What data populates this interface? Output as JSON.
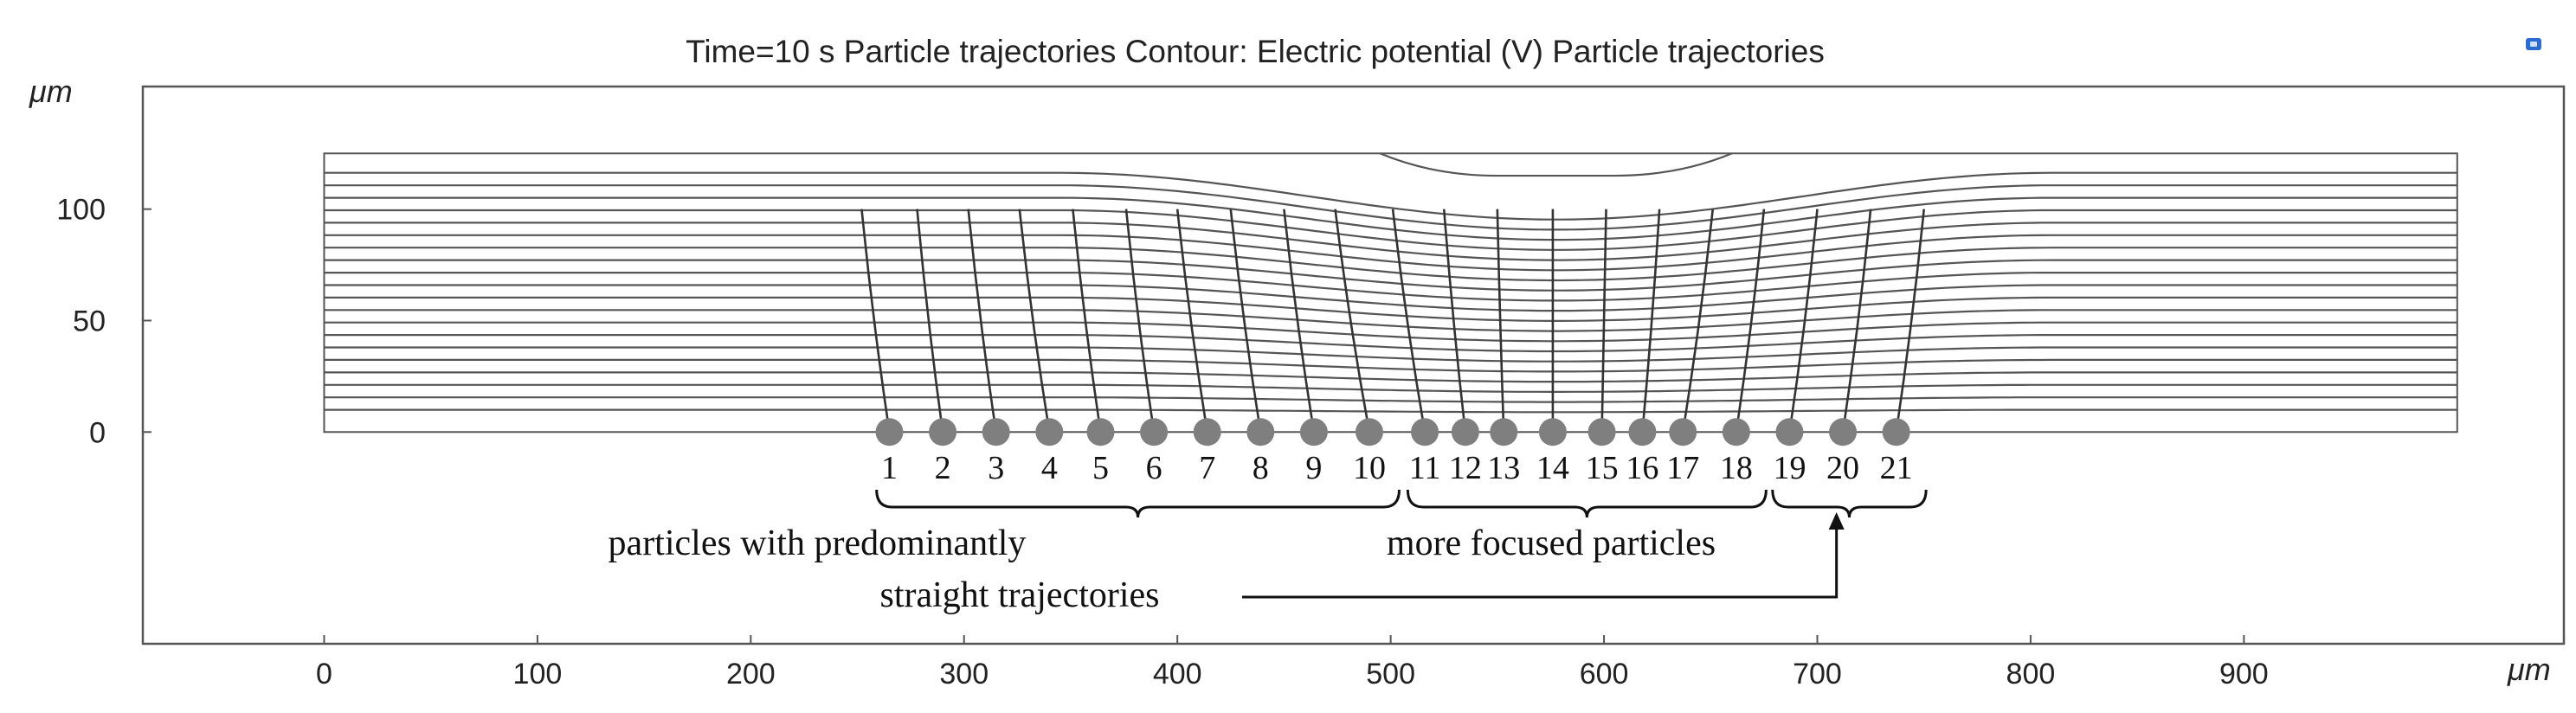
{
  "chart_data": {
    "type": "line",
    "title": "Time=10 s  Particle trajectories  Contour: Electric potential (V) Particle trajectories",
    "xlabel": "μm",
    "ylabel": "μm",
    "xlim": [
      -85,
      1050
    ],
    "ylim": [
      -95,
      155
    ],
    "x_ticks": [
      0,
      100,
      200,
      300,
      400,
      500,
      600,
      700,
      800,
      900
    ],
    "y_ticks": [
      0,
      50,
      100
    ],
    "domain": {
      "x": [
        0,
        1000
      ],
      "y": [
        0,
        125
      ]
    },
    "electrode_gap": [
      515,
      640
    ],
    "contour_count": 20,
    "particles": {
      "labels": [
        "1",
        "2",
        "3",
        "4",
        "5",
        "6",
        "7",
        "8",
        "9",
        "10",
        "11",
        "12",
        "13",
        "14",
        "15",
        "16",
        "17",
        "18",
        "19",
        "20",
        "21"
      ],
      "start_x": [
        265,
        290,
        315,
        340,
        364,
        389,
        414,
        439,
        464,
        490,
        516,
        535,
        553,
        576,
        599,
        618,
        637,
        662,
        687,
        712,
        737
      ],
      "start_y": 0,
      "end_x": [
        252,
        278,
        302,
        326,
        351,
        376,
        400,
        425,
        450,
        474,
        501,
        525,
        550,
        576,
        601,
        626,
        651,
        675,
        700,
        725,
        750
      ],
      "end_y": [
        100,
        100,
        100,
        100,
        100,
        100,
        100,
        100,
        100,
        100,
        100,
        100,
        100,
        100,
        100,
        100,
        100,
        100,
        100,
        100,
        100
      ]
    },
    "annotations": {
      "straight": "particles with predominantly",
      "straight_line2": "straight trajectories",
      "focused": "more focused particles"
    },
    "grid": false,
    "legend": "none",
    "colors": {
      "contour": "#555555",
      "particle": "#7f7f7f",
      "trajectory": "#333333",
      "frame": "#555555"
    }
  },
  "corner_icon": "color-legend-icon"
}
